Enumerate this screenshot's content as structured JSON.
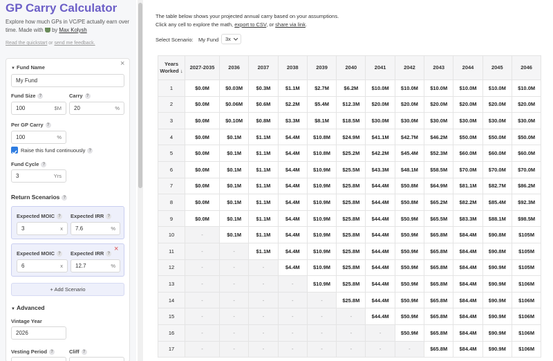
{
  "sidebar": {
    "title": "GP Carry Calculator",
    "intro": {
      "text": "Explore how much GPs in VC/PE actually earn over time. Made with",
      "by": "by",
      "author": "Max Kolysh"
    },
    "links": {
      "quickstart": "Read the quickstart",
      "or": "or",
      "feedback": "send me feedback."
    },
    "icons": {
      "collapse": "▼",
      "close": "×",
      "help": "?"
    },
    "fund": {
      "name_label": "Fund Name",
      "name_value": "My Fund",
      "size_label": "Fund Size",
      "size_value": "100",
      "size_unit": "$M",
      "carry_label": "Carry",
      "carry_value": "20",
      "percent_unit": "%",
      "per_gp_label": "Per GP Carry",
      "per_gp_value": "100",
      "raise_label": "Raise this fund continuously",
      "cycle_label": "Fund Cycle",
      "cycle_value": "3",
      "cycle_unit": "Yrs"
    },
    "scenarios": {
      "heading": "Return Scenarios",
      "moic_label": "Expected MOIC",
      "irr_label": "Expected IRR",
      "moic_unit": "x",
      "items": [
        {
          "moic": "3",
          "irr": "7.6"
        },
        {
          "moic": "6",
          "irr": "12.7"
        }
      ],
      "add": "+ Add Scenario"
    },
    "advanced": {
      "heading": "Advanced",
      "vintage_label": "Vintage Year",
      "vintage_value": "2026",
      "vesting_label": "Vesting Period",
      "cliff_label": "Cliff"
    }
  },
  "main": {
    "line1": "The table below shows your projected annual carry based on your assumptions.",
    "line2_start": "Click any cell to explore the math,",
    "export": "export to CSV",
    "line2_mid": ", or",
    "share": "share via link",
    "line2_end": ".",
    "select_label": "Select Scenario:",
    "fund": "My Fund",
    "scenario": "3x"
  },
  "table": {
    "headers": [
      "Years Worked ↓",
      "2027-2035",
      "2036",
      "2037",
      "2038",
      "2039",
      "2040",
      "2041",
      "2042",
      "2043",
      "2044",
      "2045",
      "2046"
    ],
    "rows": [
      [
        "1",
        "$0.0M",
        "$0.03M",
        "$0.3M",
        "$1.1M",
        "$2.7M",
        "$6.2M",
        "$10.0M",
        "$10.0M",
        "$10.0M",
        "$10.0M",
        "$10.0M",
        "$10.0M"
      ],
      [
        "2",
        "$0.0M",
        "$0.06M",
        "$0.6M",
        "$2.2M",
        "$5.4M",
        "$12.3M",
        "$20.0M",
        "$20.0M",
        "$20.0M",
        "$20.0M",
        "$20.0M",
        "$20.0M"
      ],
      [
        "3",
        "$0.0M",
        "$0.10M",
        "$0.8M",
        "$3.3M",
        "$8.1M",
        "$18.5M",
        "$30.0M",
        "$30.0M",
        "$30.0M",
        "$30.0M",
        "$30.0M",
        "$30.0M"
      ],
      [
        "4",
        "$0.0M",
        "$0.1M",
        "$1.1M",
        "$4.4M",
        "$10.8M",
        "$24.9M",
        "$41.1M",
        "$42.7M",
        "$46.2M",
        "$50.0M",
        "$50.0M",
        "$50.0M"
      ],
      [
        "5",
        "$0.0M",
        "$0.1M",
        "$1.1M",
        "$4.4M",
        "$10.8M",
        "$25.2M",
        "$42.2M",
        "$45.4M",
        "$52.3M",
        "$60.0M",
        "$60.0M",
        "$60.0M"
      ],
      [
        "6",
        "$0.0M",
        "$0.1M",
        "$1.1M",
        "$4.4M",
        "$10.9M",
        "$25.5M",
        "$43.3M",
        "$48.1M",
        "$58.5M",
        "$70.0M",
        "$70.0M",
        "$70.0M"
      ],
      [
        "7",
        "$0.0M",
        "$0.1M",
        "$1.1M",
        "$4.4M",
        "$10.9M",
        "$25.8M",
        "$44.4M",
        "$50.8M",
        "$64.9M",
        "$81.1M",
        "$82.7M",
        "$86.2M"
      ],
      [
        "8",
        "$0.0M",
        "$0.1M",
        "$1.1M",
        "$4.4M",
        "$10.9M",
        "$25.8M",
        "$44.4M",
        "$50.8M",
        "$65.2M",
        "$82.2M",
        "$85.4M",
        "$92.3M"
      ],
      [
        "9",
        "$0.0M",
        "$0.1M",
        "$1.1M",
        "$4.4M",
        "$10.9M",
        "$25.8M",
        "$44.4M",
        "$50.9M",
        "$65.5M",
        "$83.3M",
        "$88.1M",
        "$98.5M"
      ],
      [
        "10",
        "-",
        "$0.1M",
        "$1.1M",
        "$4.4M",
        "$10.9M",
        "$25.8M",
        "$44.4M",
        "$50.9M",
        "$65.8M",
        "$84.4M",
        "$90.8M",
        "$105M"
      ],
      [
        "11",
        "-",
        "-",
        "$1.1M",
        "$4.4M",
        "$10.9M",
        "$25.8M",
        "$44.4M",
        "$50.9M",
        "$65.8M",
        "$84.4M",
        "$90.8M",
        "$105M"
      ],
      [
        "12",
        "-",
        "-",
        "-",
        "$4.4M",
        "$10.9M",
        "$25.8M",
        "$44.4M",
        "$50.9M",
        "$65.8M",
        "$84.4M",
        "$90.9M",
        "$105M"
      ],
      [
        "13",
        "-",
        "-",
        "-",
        "-",
        "$10.9M",
        "$25.8M",
        "$44.4M",
        "$50.9M",
        "$65.8M",
        "$84.4M",
        "$90.9M",
        "$106M"
      ],
      [
        "14",
        "-",
        "-",
        "-",
        "-",
        "-",
        "$25.8M",
        "$44.4M",
        "$50.9M",
        "$65.8M",
        "$84.4M",
        "$90.9M",
        "$106M"
      ],
      [
        "15",
        "-",
        "-",
        "-",
        "-",
        "-",
        "-",
        "$44.4M",
        "$50.9M",
        "$65.8M",
        "$84.4M",
        "$90.9M",
        "$106M"
      ],
      [
        "16",
        "-",
        "-",
        "-",
        "-",
        "-",
        "-",
        "-",
        "$50.9M",
        "$65.8M",
        "$84.4M",
        "$90.9M",
        "$106M"
      ],
      [
        "17",
        "-",
        "-",
        "-",
        "-",
        "-",
        "-",
        "-",
        "-",
        "$65.8M",
        "$84.4M",
        "$90.9M",
        "$106M"
      ]
    ]
  }
}
